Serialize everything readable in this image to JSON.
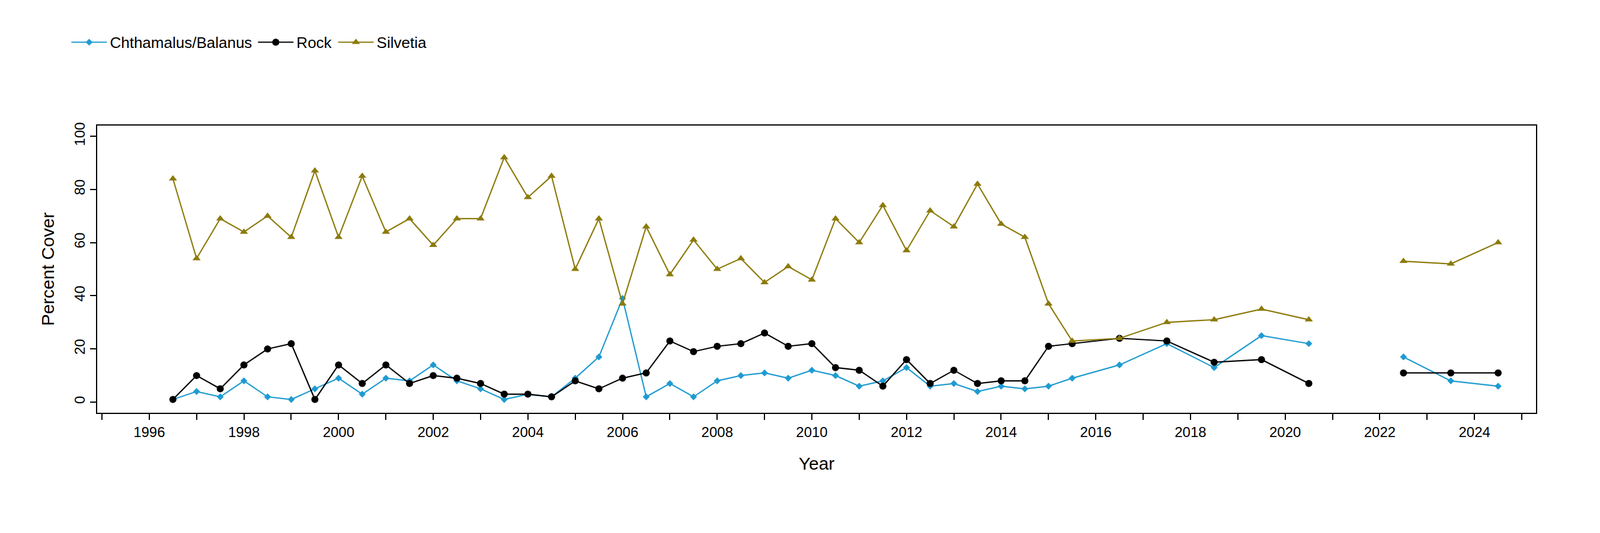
{
  "chart_data": {
    "type": "line",
    "x_label": "Year",
    "y_label": "Percent Cover",
    "x": [
      1996.5,
      1997.0,
      1997.5,
      1998.0,
      1998.5,
      1999.0,
      1999.5,
      2000.0,
      2000.5,
      2001.0,
      2001.5,
      2002.0,
      2002.5,
      2003.0,
      2003.5,
      2004.0,
      2004.5,
      2005.0,
      2005.5,
      2006.0,
      2006.5,
      2007.0,
      2007.5,
      2008.0,
      2008.5,
      2009.0,
      2009.5,
      2010.0,
      2010.5,
      2011.0,
      2011.5,
      2012.0,
      2012.5,
      2013.0,
      2013.5,
      2014.0,
      2014.5,
      2015.0,
      2015.5,
      2016.5,
      2017.5,
      2018.5,
      2019.5,
      2020.5,
      2021.5,
      2022.5,
      2023.5,
      2024.5
    ],
    "series": [
      {
        "name": "Chthamalus/Balanus",
        "color": "#1f9bd1",
        "marker": "diamond",
        "line_style": "solid",
        "values": [
          1,
          4,
          2,
          8,
          2,
          1,
          5,
          9,
          3,
          9,
          8,
          14,
          8,
          5,
          1,
          3,
          2,
          9,
          17,
          39,
          2,
          7,
          2,
          8,
          10,
          11,
          9,
          12,
          10,
          6,
          8,
          13,
          6,
          7,
          4,
          6,
          5,
          6,
          9,
          14,
          22,
          13,
          25,
          22,
          null,
          17,
          8,
          6
        ]
      },
      {
        "name": "Rock",
        "color": "#000000",
        "marker": "circle",
        "line_style": "solid",
        "values": [
          1,
          10,
          5,
          14,
          20,
          22,
          1,
          14,
          7,
          14,
          7,
          10,
          9,
          7,
          3,
          3,
          2,
          8,
          5,
          9,
          11,
          23,
          19,
          21,
          22,
          26,
          21,
          22,
          13,
          12,
          6,
          16,
          7,
          12,
          7,
          8,
          8,
          21,
          22,
          24,
          23,
          15,
          16,
          7,
          null,
          11,
          11,
          11
        ]
      },
      {
        "name": "Silvetia",
        "color": "#8c7a0a",
        "marker": "triangle-up",
        "line_style": "solid",
        "values": [
          84,
          54,
          69,
          64,
          70,
          62,
          87,
          62,
          85,
          64,
          69,
          59,
          69,
          69,
          92,
          77,
          85,
          50,
          69,
          37,
          66,
          48,
          61,
          50,
          54,
          45,
          51,
          46,
          69,
          60,
          74,
          57,
          72,
          66,
          82,
          67,
          62,
          37,
          23,
          24,
          30,
          31,
          35,
          31,
          null,
          53,
          52,
          60
        ]
      }
    ],
    "xlim": [
      1994.9,
      2025.3
    ],
    "xticks": [
      1996,
      1998,
      2000,
      2002,
      2004,
      2006,
      2008,
      2010,
      2012,
      2014,
      2016,
      2018,
      2020,
      2022,
      2024
    ],
    "ylim": [
      -4,
      104
    ],
    "yticks": [
      0,
      20,
      40,
      60,
      80,
      100
    ],
    "grid": false,
    "legend": "top-left"
  }
}
